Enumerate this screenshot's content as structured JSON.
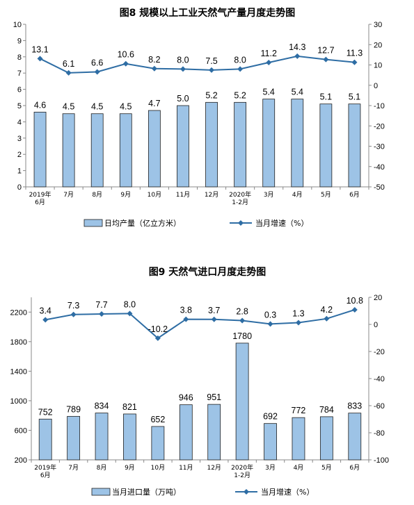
{
  "colors": {
    "bar_fill": "#9dc3e6",
    "bar_stroke": "#1f1f1f",
    "line": "#2e6da4",
    "axis": "#888888"
  },
  "chart_data": [
    {
      "type": "bar+line",
      "title": "图8  规模以上工业天然气产量月度走势图",
      "categories": [
        "2019年\n6月",
        "7月",
        "8月",
        "9月",
        "10月",
        "11月",
        "12月",
        "2020年\n1-2月",
        "3月",
        "4月",
        "5月",
        "6月"
      ],
      "series": [
        {
          "name": "日均产量（亿立方米）",
          "kind": "bar",
          "axis": "left",
          "values": [
            4.6,
            4.5,
            4.5,
            4.5,
            4.7,
            5.0,
            5.2,
            5.2,
            5.4,
            5.4,
            5.1,
            5.1
          ]
        },
        {
          "name": "当月增速（%）",
          "kind": "line",
          "axis": "right",
          "values": [
            13.1,
            6.1,
            6.6,
            10.6,
            8.2,
            8.0,
            7.5,
            8.0,
            11.2,
            14.3,
            12.7,
            11.3
          ]
        }
      ],
      "left_axis": {
        "ylim": [
          0,
          10
        ],
        "ticks": [
          0,
          1,
          2,
          3,
          4,
          5,
          6,
          7,
          8,
          9,
          10
        ]
      },
      "right_axis": {
        "ylim": [
          -50,
          30
        ],
        "ticks": [
          30,
          20,
          10,
          0,
          -10,
          -20,
          -30,
          -40,
          -50
        ]
      },
      "grid": false,
      "legend": "bottom"
    },
    {
      "type": "bar+line",
      "title": "图9  天然气进口月度走势图",
      "categories": [
        "2019年\n6月",
        "7月",
        "8月",
        "9月",
        "10月",
        "11月",
        "12月",
        "2020年\n1-2月",
        "3月",
        "4月",
        "5月",
        "6月"
      ],
      "series": [
        {
          "name": "当月进口量（万吨）",
          "kind": "bar",
          "axis": "left",
          "values": [
            752,
            789,
            834,
            821,
            652,
            946,
            951,
            1780,
            692,
            772,
            784,
            833
          ]
        },
        {
          "name": "当月增速（%）",
          "kind": "line",
          "axis": "right",
          "values": [
            3.4,
            7.3,
            7.7,
            8.0,
            -10.2,
            3.8,
            3.7,
            2.8,
            0.3,
            1.3,
            4.2,
            10.8
          ]
        }
      ],
      "left_axis": {
        "ylim": [
          200,
          2400
        ],
        "ticks": [
          200,
          600,
          1000,
          1400,
          1800,
          2200
        ]
      },
      "right_axis": {
        "ylim": [
          -100,
          20
        ],
        "ticks": [
          20,
          0,
          -20,
          -40,
          -60,
          -80,
          -100
        ]
      },
      "grid": false,
      "legend": "bottom"
    }
  ]
}
